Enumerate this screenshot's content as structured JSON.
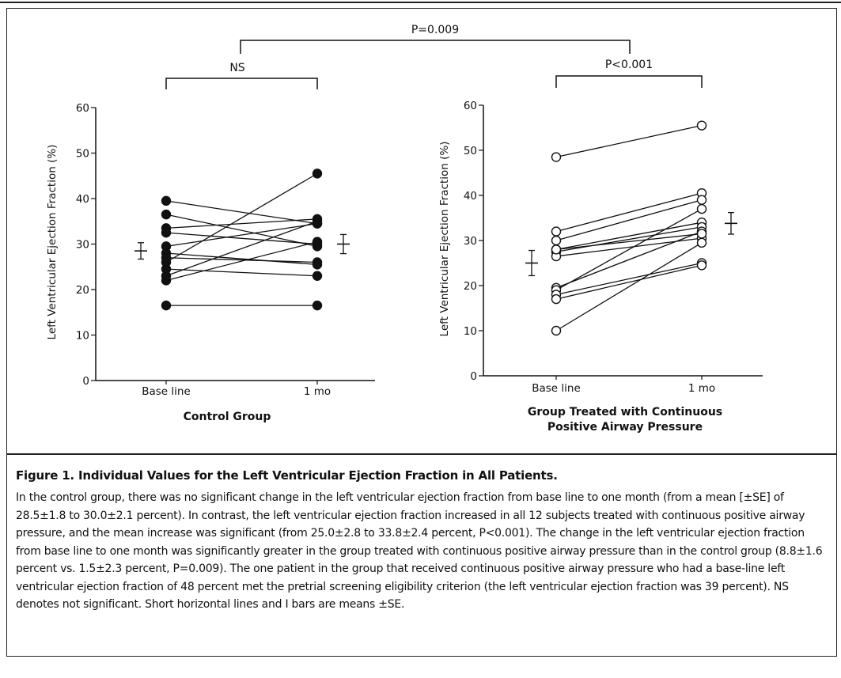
{
  "figure": {
    "caption_title": "Figure 1. Individual Values for the Left Ventricular Ejection Fraction in All Patients.",
    "caption_text": "In the control group, there was no significant change in the left ventricular ejection fraction from base line to one month (from a mean [±SE] of 28.5±1.8 to 30.0±2.1 percent). In contrast, the left ventricular ejection fraction increased in all 12 subjects treated with continuous positive airway pressure, and the mean increase was significant (from 25.0±2.8 to 33.8±2.4 percent, P<0.001). The change in the left ventricular ejection fraction from base line to one month was significantly greater in the group treated with continuous positive airway pressure than in the control group (8.8±1.6 percent vs. 1.5±2.3 percent, P=0.009). The one patient in the group that received continuous positive airway pressure who had a base-line left ventricular ejection fraction of 48 percent met the pretrial screening eligibility criterion (the left ventricular ejection fraction was 39 percent). NS denotes not significant. Short horizontal lines and I bars are means ±SE.",
    "comparisons": {
      "between_groups": "P=0.009",
      "control_within": "NS",
      "cpap_within": "P<0.001"
    }
  },
  "chart_data": [
    {
      "type": "line",
      "title": "Control Group",
      "xlabel": "Control Group",
      "ylabel": "Left Ventricular Ejection Fraction (%)",
      "categories": [
        "Base line",
        "1 mo"
      ],
      "ylim": [
        0,
        60
      ],
      "yticks": [
        0,
        10,
        20,
        30,
        40,
        50,
        60
      ],
      "marker": "filled-circle",
      "pairs": [
        [
          39.5,
          34.5
        ],
        [
          36.5,
          29.5
        ],
        [
          33.5,
          35.5
        ],
        [
          32.5,
          30.0
        ],
        [
          29.5,
          34.5
        ],
        [
          28.0,
          25.5
        ],
        [
          27.0,
          26.0
        ],
        [
          26.0,
          45.5
        ],
        [
          24.5,
          23.0
        ],
        [
          23.0,
          35.0
        ],
        [
          22.0,
          30.5
        ],
        [
          16.5,
          16.5
        ]
      ],
      "mean_se": {
        "Base line": {
          "mean": 28.5,
          "se": 1.8
        },
        "1 mo": {
          "mean": 30.0,
          "se": 2.1
        }
      },
      "significance": "NS"
    },
    {
      "type": "line",
      "title": "Group Treated with Continuous Positive Airway Pressure",
      "xlabel": "Group Treated with Continuous Positive Airway Pressure",
      "ylabel": "Left Ventricular Ejection Fraction (%)",
      "categories": [
        "Base line",
        "1 mo"
      ],
      "ylim": [
        0,
        60
      ],
      "yticks": [
        0,
        10,
        20,
        30,
        40,
        50,
        60
      ],
      "marker": "open-circle",
      "pairs": [
        [
          48.5,
          55.5
        ],
        [
          32.0,
          40.5
        ],
        [
          30.0,
          39.0
        ],
        [
          28.0,
          34.0
        ],
        [
          27.5,
          33.0
        ],
        [
          26.5,
          30.5
        ],
        [
          19.5,
          32.0
        ],
        [
          19.0,
          37.0
        ],
        [
          18.0,
          25.0
        ],
        [
          17.0,
          24.5
        ],
        [
          10.0,
          29.5
        ],
        [
          28.0,
          31.5
        ]
      ],
      "mean_se": {
        "Base line": {
          "mean": 25.0,
          "se": 2.8
        },
        "1 mo": {
          "mean": 33.8,
          "se": 2.4
        }
      },
      "significance": "P<0.001"
    }
  ]
}
